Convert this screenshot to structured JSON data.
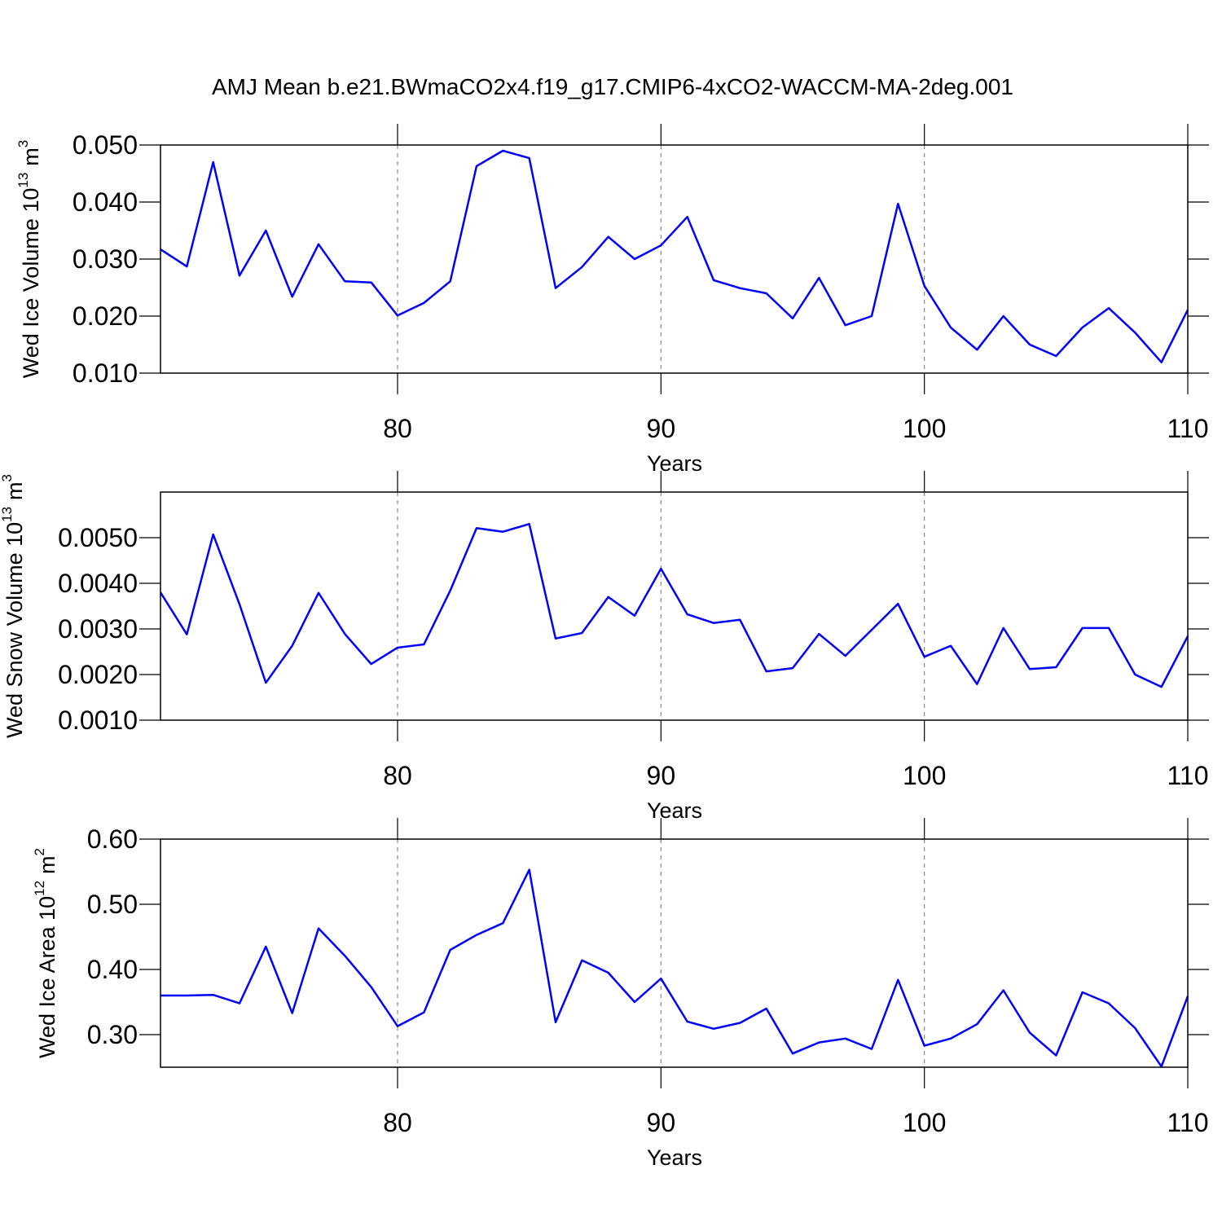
{
  "chart_data": [
    {
      "type": "line",
      "title": "AMJ Mean b.e21.BWmaCO2x4.f19_g17.CMIP6-4xCO2-WACCM-MA-2deg.001",
      "ylabel": {
        "text": "Wed Ice Volume 10",
        "exponent": "13",
        "unit": "m",
        "unit_exponent": "3"
      },
      "xlabel": "Years",
      "color": "#0000ff",
      "xgrid": true,
      "x": [
        71,
        72,
        73,
        74,
        75,
        76,
        77,
        78,
        79,
        80,
        81,
        82,
        83,
        84,
        85,
        86,
        87,
        88,
        89,
        90,
        91,
        92,
        93,
        94,
        95,
        96,
        97,
        98,
        99,
        100,
        101,
        102,
        103,
        104,
        105,
        106,
        107,
        108,
        109,
        110
      ],
      "values": [
        0.0317,
        0.0287,
        0.047,
        0.0271,
        0.035,
        0.0234,
        0.0326,
        0.0261,
        0.0259,
        0.0201,
        0.0223,
        0.0261,
        0.0463,
        0.049,
        0.0477,
        0.0249,
        0.0286,
        0.0339,
        0.03,
        0.0324,
        0.0374,
        0.0263,
        0.0249,
        0.024,
        0.0196,
        0.0267,
        0.0184,
        0.02,
        0.0397,
        0.0253,
        0.018,
        0.0141,
        0.02,
        0.015,
        0.013,
        0.018,
        0.0214,
        0.0171,
        0.0119,
        0.0211
      ],
      "xlim": [
        71,
        110
      ],
      "xticks": [
        80,
        90,
        100,
        110
      ],
      "ylim": [
        0.01,
        0.05
      ],
      "yticks": [
        {
          "value": 0.01,
          "label": "0.010"
        },
        {
          "value": 0.02,
          "label": "0.020"
        },
        {
          "value": 0.03,
          "label": "0.030"
        },
        {
          "value": 0.04,
          "label": "0.040"
        },
        {
          "value": 0.05,
          "label": "0.050"
        }
      ]
    },
    {
      "type": "line",
      "ylabel": {
        "text": "Wed Snow Volume 10",
        "exponent": "13",
        "unit": "m",
        "unit_exponent": "3"
      },
      "xlabel": "Years",
      "color": "#0000ff",
      "xgrid": true,
      "x": [
        71,
        72,
        73,
        74,
        75,
        76,
        77,
        78,
        79,
        80,
        81,
        82,
        83,
        84,
        85,
        86,
        87,
        88,
        89,
        90,
        91,
        92,
        93,
        94,
        95,
        96,
        97,
        98,
        99,
        100,
        101,
        102,
        103,
        104,
        105,
        106,
        107,
        108,
        109,
        110
      ],
      "values": [
        0.0038,
        0.00288,
        0.00507,
        0.00354,
        0.00182,
        0.00263,
        0.00379,
        0.00289,
        0.00223,
        0.00259,
        0.00266,
        0.00384,
        0.00521,
        0.00513,
        0.0053,
        0.00279,
        0.00291,
        0.0037,
        0.00329,
        0.00432,
        0.00332,
        0.00313,
        0.0032,
        0.00207,
        0.00214,
        0.00289,
        0.00241,
        0.00298,
        0.00355,
        0.00239,
        0.00263,
        0.00179,
        0.00302,
        0.00212,
        0.00216,
        0.00302,
        0.00302,
        0.002,
        0.00173,
        0.00284
      ],
      "xlim": [
        71,
        110
      ],
      "xticks": [
        80,
        90,
        100,
        110
      ],
      "ylim": [
        0.001,
        0.006
      ],
      "yticks": [
        {
          "value": 0.001,
          "label": "0.0010"
        },
        {
          "value": 0.002,
          "label": "0.0020"
        },
        {
          "value": 0.003,
          "label": "0.0030"
        },
        {
          "value": 0.004,
          "label": "0.0040"
        },
        {
          "value": 0.005,
          "label": "0.0050"
        }
      ]
    },
    {
      "type": "line",
      "ylabel": {
        "text": "Wed Ice Area 10",
        "exponent": "12",
        "unit": "m",
        "unit_exponent": "2"
      },
      "xlabel": "Years",
      "color": "#0000ff",
      "xgrid": true,
      "x": [
        71,
        72,
        73,
        74,
        75,
        76,
        77,
        78,
        79,
        80,
        81,
        82,
        83,
        84,
        85,
        86,
        87,
        88,
        89,
        90,
        91,
        92,
        93,
        94,
        95,
        96,
        97,
        98,
        99,
        100,
        101,
        102,
        103,
        104,
        105,
        106,
        107,
        108,
        109,
        110
      ],
      "values": [
        0.36,
        0.36,
        0.361,
        0.348,
        0.435,
        0.333,
        0.463,
        0.421,
        0.373,
        0.313,
        0.334,
        0.43,
        0.453,
        0.471,
        0.553,
        0.319,
        0.414,
        0.395,
        0.35,
        0.386,
        0.32,
        0.309,
        0.318,
        0.34,
        0.271,
        0.288,
        0.294,
        0.278,
        0.384,
        0.283,
        0.294,
        0.316,
        0.368,
        0.303,
        0.268,
        0.365,
        0.348,
        0.31,
        0.251,
        0.359
      ],
      "xlim": [
        71,
        110
      ],
      "xticks": [
        80,
        90,
        100,
        110
      ],
      "ylim": [
        0.25,
        0.6
      ],
      "yticks": [
        {
          "value": 0.3,
          "label": "0.30"
        },
        {
          "value": 0.4,
          "label": "0.40"
        },
        {
          "value": 0.5,
          "label": "0.50"
        },
        {
          "value": 0.6,
          "label": "0.60"
        }
      ]
    }
  ]
}
